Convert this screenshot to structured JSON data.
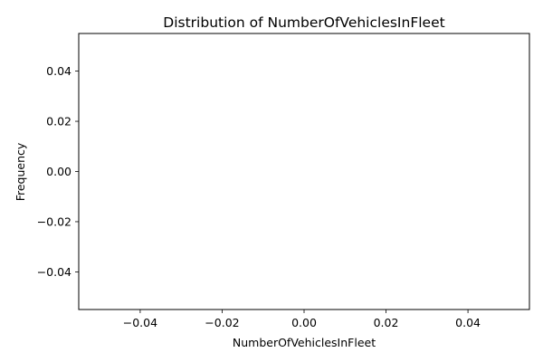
{
  "chart_data": {
    "type": "bar",
    "title": "Distribution of NumberOfVehiclesInFleet",
    "xlabel": "NumberOfVehiclesInFleet",
    "ylabel": "Frequency",
    "xlim": [
      -0.055,
      0.055
    ],
    "ylim": [
      -0.055,
      0.055
    ],
    "xticks": [
      "-0.04",
      "-0.02",
      "0.00",
      "0.02",
      "0.04"
    ],
    "yticks": [
      "-0.04",
      "-0.02",
      "0.00",
      "0.02",
      "0.04"
    ],
    "bins": [],
    "values": [],
    "grid": false,
    "legend": null
  }
}
